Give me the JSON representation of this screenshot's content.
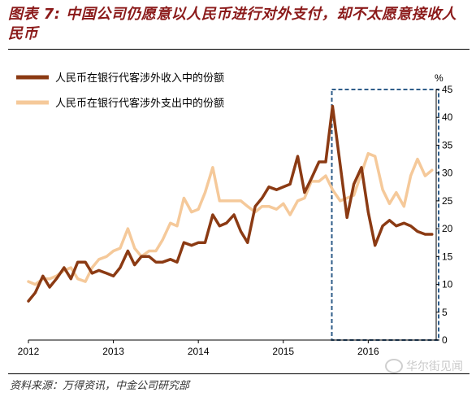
{
  "figure": {
    "title": "图表 7: 中国公司仍愿意以人民币进行对外支付，却不太愿意接收人民币",
    "source": "资料来源：万得资讯，中金公司研究部",
    "watermark": "华尔街见闻"
  },
  "colors": {
    "receipts": "#8b3a13",
    "payments": "#f5c99a",
    "highlight_box": "#2f5d8a",
    "title": "#8b1a1a"
  },
  "chart_data": {
    "type": "line",
    "ylabel": "%",
    "ylim": [
      0,
      45
    ],
    "yticks": [
      0,
      5,
      10,
      15,
      20,
      25,
      30,
      35,
      40,
      45
    ],
    "xlim": [
      2012.0,
      2016.8
    ],
    "xticks": [
      2012,
      2013,
      2014,
      2015,
      2016
    ],
    "xtick_labels": [
      "2012",
      "2013",
      "2014",
      "2015",
      "2016"
    ],
    "legend_position": "top-left",
    "highlight": {
      "x_range": [
        2015.6,
        2016.8
      ],
      "y_range": [
        0,
        45
      ],
      "style": "dashed"
    },
    "series": [
      {
        "name": "人民币在银行代客涉外收入中的份额",
        "x": [
          2012.0,
          2012.08,
          2012.17,
          2012.25,
          2012.33,
          2012.42,
          2012.5,
          2012.58,
          2012.67,
          2012.75,
          2012.83,
          2012.92,
          2013.0,
          2013.08,
          2013.17,
          2013.25,
          2013.33,
          2013.42,
          2013.5,
          2013.58,
          2013.67,
          2013.75,
          2013.83,
          2013.92,
          2014.0,
          2014.08,
          2014.17,
          2014.25,
          2014.33,
          2014.42,
          2014.5,
          2014.58,
          2014.67,
          2014.75,
          2014.83,
          2014.92,
          2015.0,
          2015.08,
          2015.17,
          2015.25,
          2015.33,
          2015.42,
          2015.5,
          2015.58,
          2015.67,
          2015.75,
          2015.83,
          2015.92,
          2016.0,
          2016.08,
          2016.17,
          2016.25,
          2016.33,
          2016.42,
          2016.5,
          2016.58,
          2016.67,
          2016.75
        ],
        "values": [
          7,
          8.5,
          11.5,
          9.5,
          11,
          13,
          11,
          14,
          14,
          12,
          12.5,
          12,
          11.5,
          13,
          16,
          13.5,
          15,
          15,
          14,
          14,
          14.5,
          14,
          17.5,
          17,
          17.5,
          17.5,
          22.5,
          20.5,
          21,
          22.5,
          19.5,
          17.5,
          24,
          25.5,
          27.5,
          27,
          27.5,
          28,
          33,
          26.5,
          29,
          32,
          32,
          42,
          31.5,
          22,
          28,
          31,
          23,
          17,
          20.5,
          21.5,
          20.5,
          21,
          20.5,
          19.5,
          19,
          19
        ]
      },
      {
        "name": "人民币在银行代客涉外支出中的份额",
        "x": [
          2012.0,
          2012.08,
          2012.17,
          2012.25,
          2012.33,
          2012.42,
          2012.5,
          2012.58,
          2012.67,
          2012.75,
          2012.83,
          2012.92,
          2013.0,
          2013.08,
          2013.17,
          2013.25,
          2013.33,
          2013.42,
          2013.5,
          2013.58,
          2013.67,
          2013.75,
          2013.83,
          2013.92,
          2014.0,
          2014.08,
          2014.17,
          2014.25,
          2014.33,
          2014.42,
          2014.5,
          2014.58,
          2014.67,
          2014.75,
          2014.83,
          2014.92,
          2015.0,
          2015.08,
          2015.17,
          2015.25,
          2015.33,
          2015.42,
          2015.5,
          2015.58,
          2015.67,
          2015.75,
          2015.83,
          2015.92,
          2016.0,
          2016.08,
          2016.17,
          2016.25,
          2016.33,
          2016.42,
          2016.5,
          2016.58,
          2016.67,
          2016.75
        ],
        "values": [
          10.5,
          10,
          11,
          11,
          11.5,
          12.5,
          13,
          11,
          10.5,
          13,
          14.5,
          15,
          16,
          16.5,
          20,
          16.5,
          15,
          16,
          16,
          18,
          21,
          20.5,
          25.5,
          23,
          23.5,
          26.5,
          31,
          25,
          25,
          25,
          25,
          24,
          23,
          24,
          24,
          23.5,
          24.5,
          22.5,
          25,
          25.5,
          28.5,
          28.5,
          29.5,
          27,
          25,
          25.5,
          26,
          30,
          33.5,
          33,
          27,
          24.5,
          26.5,
          24,
          29.5,
          32.5,
          29.5,
          30.5
        ]
      }
    ]
  }
}
